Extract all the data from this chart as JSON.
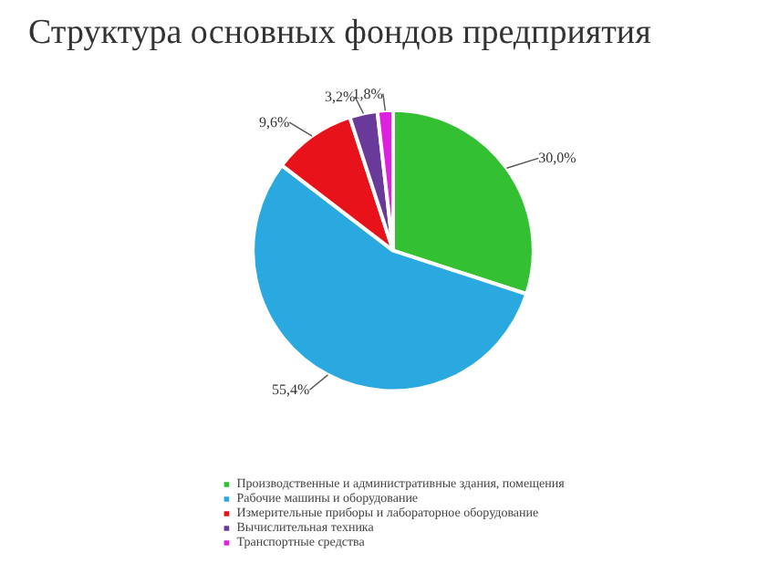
{
  "chart_data": {
    "type": "pie",
    "title": "Структура основных фондов предприятия",
    "categories": [
      "Производственные и административные здания, помещения",
      "Рабочие машины и оборудование",
      "Измерительные приборы и лабораторное оборудование",
      "Вычислительная техника",
      "Транспортные средства"
    ],
    "values": [
      30.0,
      55.4,
      9.6,
      3.2,
      1.8
    ],
    "value_labels": [
      "30,0%",
      "55,4%",
      "9,6%",
      "3,2%",
      "1,8%"
    ],
    "colors": [
      "#33c133",
      "#29a9e0",
      "#e8131a",
      "#6a3a9a",
      "#e020e0"
    ],
    "legend": "bottom"
  }
}
